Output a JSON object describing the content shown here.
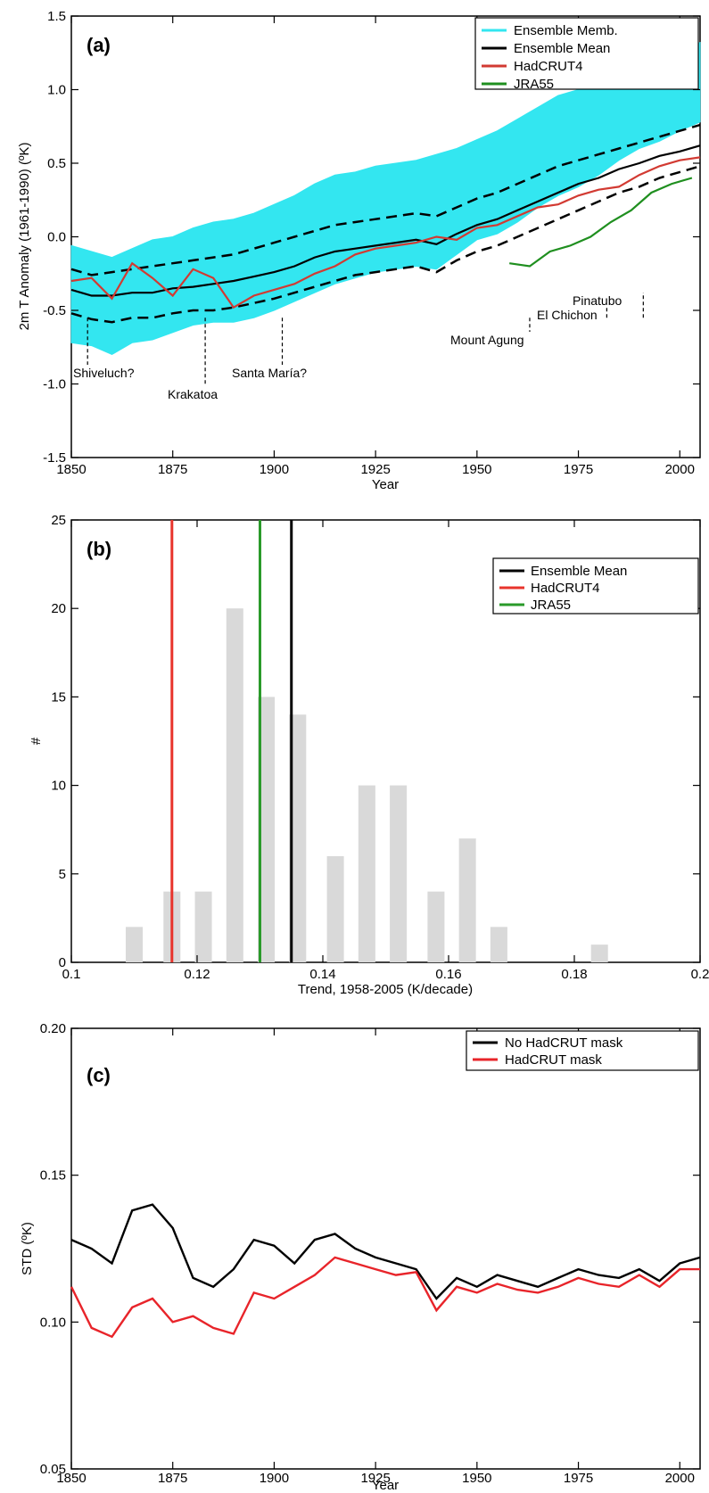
{
  "chart_data": [
    {
      "panel": "(a)",
      "type": "line",
      "xlabel": "Year",
      "ylabel": "2m T Anomaly (1961-1990) (ºK)",
      "xlim": [
        1850,
        2005
      ],
      "ylim": [
        -1.5,
        1.5
      ],
      "xticks": [
        1850,
        1875,
        1900,
        1925,
        1950,
        1975,
        2000
      ],
      "yticks": [
        -1.5,
        -1.0,
        -0.5,
        0.0,
        0.5,
        1.0,
        1.5
      ],
      "ytick_labels": [
        "-1.5",
        "-1.0",
        "-0.5",
        "0.0",
        "0.5",
        "1.0",
        "1.5"
      ],
      "legend_position": "top-right",
      "series": [
        {
          "name": "Ensemble Memb.",
          "color": "#33e6f0",
          "style": "band",
          "x_start": 1850,
          "x_step": 5,
          "low": [
            -0.72,
            -0.74,
            -0.8,
            -0.72,
            -0.7,
            -0.65,
            -0.6,
            -0.58,
            -0.58,
            -0.55,
            -0.5,
            -0.44,
            -0.38,
            -0.32,
            -0.28,
            -0.24,
            -0.22,
            -0.2,
            -0.22,
            -0.12,
            -0.02,
            0.02,
            0.1,
            0.2,
            0.28,
            0.34,
            0.42,
            0.52,
            0.6,
            0.65,
            0.72,
            0.78
          ],
          "high": [
            -0.06,
            -0.1,
            -0.14,
            -0.08,
            -0.02,
            0.0,
            0.06,
            0.1,
            0.12,
            0.16,
            0.22,
            0.28,
            0.36,
            0.42,
            0.44,
            0.48,
            0.5,
            0.52,
            0.56,
            0.6,
            0.66,
            0.72,
            0.8,
            0.88,
            0.96,
            1.0,
            1.04,
            1.1,
            1.16,
            1.2,
            1.26,
            1.32
          ]
        },
        {
          "name": "Ensemble Mean",
          "color": "#000000",
          "style": "solid",
          "x_start": 1850,
          "x_step": 5,
          "values": [
            -0.36,
            -0.4,
            -0.4,
            -0.38,
            -0.38,
            -0.35,
            -0.34,
            -0.32,
            -0.3,
            -0.27,
            -0.24,
            -0.2,
            -0.14,
            -0.1,
            -0.08,
            -0.06,
            -0.04,
            -0.02,
            -0.05,
            0.02,
            0.08,
            0.12,
            0.18,
            0.24,
            0.3,
            0.36,
            0.4,
            0.46,
            0.5,
            0.55,
            0.58,
            0.62
          ]
        },
        {
          "name": "Ensemble Mean +/- spread",
          "color": "#000000",
          "style": "dashed",
          "x_start": 1850,
          "x_step": 5,
          "upper": [
            -0.22,
            -0.26,
            -0.24,
            -0.22,
            -0.2,
            -0.18,
            -0.16,
            -0.14,
            -0.12,
            -0.08,
            -0.04,
            0.0,
            0.04,
            0.08,
            0.1,
            0.12,
            0.14,
            0.16,
            0.14,
            0.2,
            0.26,
            0.3,
            0.36,
            0.42,
            0.48,
            0.52,
            0.56,
            0.6,
            0.64,
            0.68,
            0.72,
            0.76
          ],
          "lower": [
            -0.52,
            -0.56,
            -0.58,
            -0.55,
            -0.55,
            -0.52,
            -0.5,
            -0.5,
            -0.48,
            -0.45,
            -0.42,
            -0.38,
            -0.34,
            -0.3,
            -0.26,
            -0.24,
            -0.22,
            -0.2,
            -0.24,
            -0.16,
            -0.1,
            -0.06,
            0.0,
            0.06,
            0.12,
            0.18,
            0.24,
            0.3,
            0.34,
            0.4,
            0.44,
            0.48
          ]
        },
        {
          "name": "HadCRUT4",
          "color": "#d23a32",
          "style": "solid",
          "x_start": 1850,
          "x_step": 5,
          "values": [
            -0.3,
            -0.28,
            -0.42,
            -0.18,
            -0.28,
            -0.4,
            -0.22,
            -0.28,
            -0.48,
            -0.4,
            -0.36,
            -0.32,
            -0.25,
            -0.2,
            -0.12,
            -0.08,
            -0.06,
            -0.04,
            0.0,
            -0.02,
            0.06,
            0.08,
            0.14,
            0.2,
            0.22,
            0.28,
            0.32,
            0.34,
            0.42,
            0.48,
            0.52,
            0.54
          ]
        },
        {
          "name": "JRA55",
          "color": "#1f8f1f",
          "style": "solid",
          "x_start": 1958,
          "x_step": 5,
          "values": [
            -0.18,
            -0.2,
            -0.1,
            -0.06,
            0.0,
            0.1,
            0.18,
            0.3,
            0.36,
            0.4
          ]
        }
      ],
      "annotations": [
        {
          "text": "Shiveluch?",
          "x": 1854
        },
        {
          "text": "Krakatoa",
          "x": 1883
        },
        {
          "text": "Santa María?",
          "x": 1902
        },
        {
          "text": "Mount Agung",
          "x": 1963
        },
        {
          "text": "El Chichon",
          "x": 1982
        },
        {
          "text": "Pinatubo",
          "x": 1991
        }
      ]
    },
    {
      "panel": "(b)",
      "type": "bar",
      "xlabel": "Trend, 1958-2005 (K/decade)",
      "ylabel": "#",
      "xlim": [
        0.1,
        0.2
      ],
      "ylim": [
        0,
        25
      ],
      "xticks": [
        0.1,
        0.12,
        0.14,
        0.16,
        0.18,
        0.2
      ],
      "xtick_labels": [
        "0.1",
        "0.12",
        "0.14",
        "0.16",
        "0.18",
        "0.2"
      ],
      "yticks": [
        0,
        5,
        10,
        15,
        20,
        25
      ],
      "bar_color": "#d9d9d9",
      "bins": [
        0.11,
        0.116,
        0.121,
        0.126,
        0.131,
        0.136,
        0.142,
        0.147,
        0.152,
        0.158,
        0.163,
        0.168,
        0.184
      ],
      "values": [
        2,
        4,
        4,
        20,
        15,
        14,
        6,
        10,
        10,
        4,
        7,
        2,
        1
      ],
      "legend_position": "top-right",
      "vlines": [
        {
          "name": "Ensemble Mean",
          "x": 0.135,
          "color": "#000000"
        },
        {
          "name": "HadCRUT4",
          "x": 0.116,
          "color": "#e8342c"
        },
        {
          "name": "JRA55",
          "x": 0.13,
          "color": "#2a9a2a"
        }
      ]
    },
    {
      "panel": "(c)",
      "type": "line",
      "xlabel": "Year",
      "ylabel": "STD (ºK)",
      "xlim": [
        1850,
        2005
      ],
      "ylim": [
        0.05,
        0.2
      ],
      "xticks": [
        1850,
        1875,
        1900,
        1925,
        1950,
        1975,
        2000
      ],
      "yticks": [
        0.05,
        0.1,
        0.15,
        0.2
      ],
      "ytick_labels": [
        "0.05",
        "0.10",
        "0.15",
        "0.20"
      ],
      "legend_position": "top-right",
      "series": [
        {
          "name": "No HadCRUT mask",
          "color": "#000000",
          "x_start": 1850,
          "x_step": 5,
          "values": [
            0.128,
            0.125,
            0.12,
            0.138,
            0.14,
            0.132,
            0.115,
            0.112,
            0.118,
            0.128,
            0.126,
            0.12,
            0.128,
            0.13,
            0.125,
            0.122,
            0.12,
            0.118,
            0.108,
            0.115,
            0.112,
            0.116,
            0.114,
            0.112,
            0.115,
            0.118,
            0.116,
            0.115,
            0.118,
            0.114,
            0.12,
            0.122
          ]
        },
        {
          "name": "HadCRUT mask",
          "color": "#e8242a",
          "x_start": 1850,
          "x_step": 5,
          "values": [
            0.112,
            0.098,
            0.095,
            0.105,
            0.108,
            0.1,
            0.102,
            0.098,
            0.096,
            0.11,
            0.108,
            0.112,
            0.116,
            0.122,
            0.12,
            0.118,
            0.116,
            0.117,
            0.104,
            0.112,
            0.11,
            0.113,
            0.111,
            0.11,
            0.112,
            0.115,
            0.113,
            0.112,
            0.116,
            0.112,
            0.118,
            0.118
          ]
        }
      ]
    }
  ]
}
